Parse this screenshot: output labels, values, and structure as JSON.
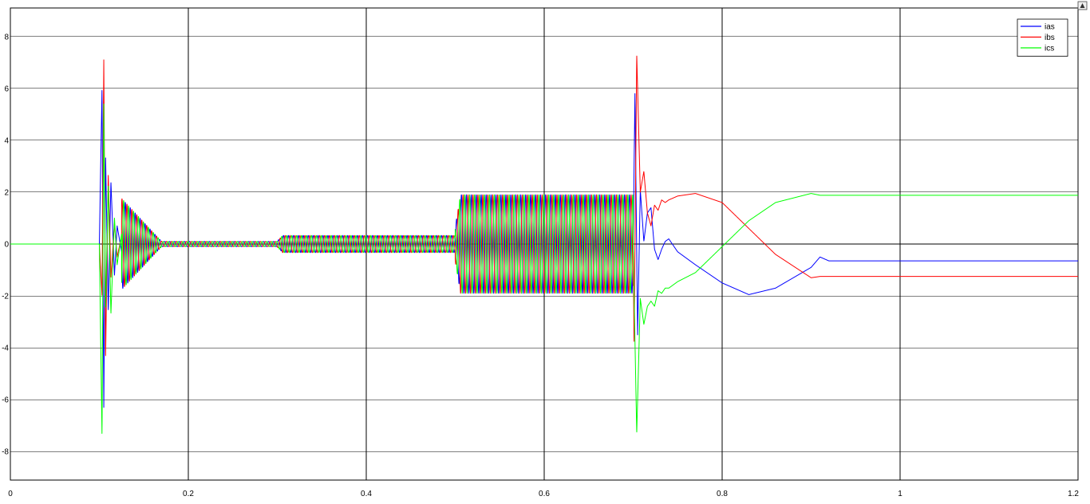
{
  "chart_data": {
    "type": "line",
    "title": "",
    "xlabel": "",
    "ylabel": "",
    "xlim": [
      0,
      1.2
    ],
    "ylim": [
      -9.1,
      9.1
    ],
    "grid": true,
    "legend_position": "top-right",
    "x_ticks": [
      "0",
      "0.2",
      "0.4",
      "0.6",
      "0.8",
      "1",
      "1.2"
    ],
    "y_ticks": [
      "8",
      "6",
      "4",
      "2",
      "0",
      "-2",
      "-4",
      "-6",
      "-8"
    ],
    "series": [
      {
        "name": "ias",
        "color": "#0000ff",
        "phase_deg": 0,
        "x": [
          0,
          0.1,
          0.103,
          0.105,
          0.107,
          0.11,
          0.113,
          0.117,
          0.12,
          0.125,
          0.13,
          0.14,
          0.15,
          0.16,
          0.17,
          0.3,
          0.31,
          0.5,
          0.51,
          0.7,
          0.702,
          0.705,
          0.708,
          0.712,
          0.716,
          0.72,
          0.724,
          0.728,
          0.732,
          0.736,
          0.74,
          0.75,
          0.77,
          0.8,
          0.83,
          0.86,
          0.9,
          0.91,
          0.92,
          1.2
        ],
        "y": [
          0,
          0,
          6.0,
          -6.3,
          3.4,
          -2.6,
          2.4,
          -1.2,
          0.7,
          -0.3,
          0.2,
          0.1,
          0,
          0,
          0,
          0,
          0,
          0,
          0,
          0,
          5.8,
          -3.5,
          2.1,
          0.1,
          1.2,
          1.4,
          -0.2,
          -0.6,
          -0.2,
          0.1,
          0.2,
          -0.3,
          -0.8,
          -1.5,
          -1.95,
          -1.7,
          -0.9,
          -0.5,
          -0.65,
          -0.65
        ]
      },
      {
        "name": "ibs",
        "color": "#ff0000",
        "phase_deg": -120,
        "x": [
          0,
          0.1,
          0.103,
          0.105,
          0.107,
          0.11,
          0.113,
          0.117,
          0.12,
          0.125,
          0.13,
          0.14,
          0.15,
          0.16,
          0.17,
          0.3,
          0.31,
          0.5,
          0.51,
          0.7,
          0.701,
          0.704,
          0.708,
          0.712,
          0.716,
          0.72,
          0.724,
          0.728,
          0.732,
          0.736,
          0.74,
          0.75,
          0.77,
          0.8,
          0.83,
          0.86,
          0.9,
          0.91,
          0.92,
          1.2
        ],
        "y": [
          0,
          0,
          -2.0,
          7.1,
          -4.4,
          2.7,
          -1.3,
          0.8,
          -0.5,
          0.3,
          -0.2,
          0.1,
          0,
          0,
          0,
          0,
          0,
          0,
          0,
          0,
          -3.9,
          7.3,
          2.0,
          2.8,
          1.2,
          0.7,
          1.5,
          1.3,
          1.7,
          1.6,
          1.7,
          1.85,
          1.95,
          1.6,
          0.6,
          -0.4,
          -1.3,
          -1.25,
          -1.25,
          -1.25
        ]
      },
      {
        "name": "ics",
        "color": "#00ff00",
        "phase_deg": 120,
        "x": [
          0,
          0.1,
          0.103,
          0.105,
          0.107,
          0.11,
          0.113,
          0.117,
          0.12,
          0.125,
          0.13,
          0.14,
          0.15,
          0.16,
          0.17,
          0.3,
          0.31,
          0.5,
          0.51,
          0.7,
          0.701,
          0.704,
          0.708,
          0.712,
          0.716,
          0.72,
          0.724,
          0.728,
          0.732,
          0.736,
          0.74,
          0.75,
          0.77,
          0.8,
          0.83,
          0.86,
          0.9,
          0.91,
          0.92,
          1.2
        ],
        "y": [
          0,
          0,
          -7.4,
          5.4,
          -2.5,
          2.3,
          -2.7,
          1.0,
          -0.8,
          0.4,
          -0.2,
          0.1,
          0,
          0,
          0,
          0,
          0,
          0,
          0,
          0,
          -1.9,
          -7.3,
          -2.1,
          -3.1,
          -2.4,
          -2.2,
          -2.4,
          -1.8,
          -1.9,
          -1.7,
          -1.7,
          -1.45,
          -1.1,
          -0.1,
          0.9,
          1.6,
          1.95,
          1.88,
          1.88,
          1.88
        ]
      }
    ],
    "oscillation_segments": [
      {
        "x_start": 0.105,
        "x_end": 0.17,
        "amplitude_start": 2.5,
        "amplitude_end": 0.1,
        "frequency_hz": 180
      },
      {
        "x_start": 0.17,
        "x_end": 0.3,
        "amplitude_start": 0.1,
        "amplitude_end": 0.1,
        "frequency_hz": 180
      },
      {
        "x_start": 0.3,
        "x_end": 0.5,
        "amplitude_start": 0.33,
        "amplitude_end": 0.33,
        "frequency_hz": 180
      },
      {
        "x_start": 0.5,
        "x_end": 0.7,
        "amplitude_start": 1.9,
        "amplitude_end": 1.9,
        "frequency_hz": 180
      }
    ]
  }
}
